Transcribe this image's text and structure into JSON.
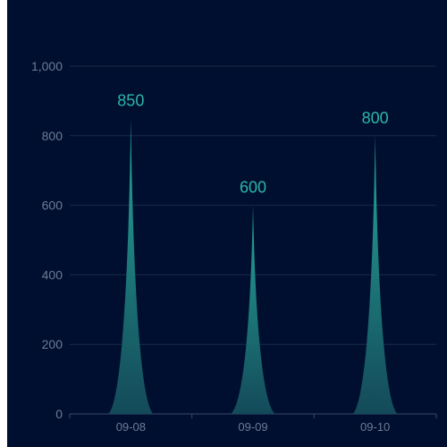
{
  "chart_data": {
    "type": "bar",
    "bar_shape": "spike",
    "categories": [
      "09-08",
      "09-09",
      "09-10"
    ],
    "values": [
      850,
      600,
      800
    ],
    "data_labels": [
      "850",
      "600",
      "800"
    ],
    "ylim": [
      0,
      1000
    ],
    "yticks": [
      0,
      200,
      400,
      600,
      800,
      1000
    ],
    "ytick_labels": [
      "0",
      "200",
      "400",
      "600",
      "800",
      "1,000"
    ],
    "grid": true,
    "legend": "none",
    "colors": {
      "background": "#000f2f",
      "bar_top": "#26a69a",
      "bar_bottom": "#134a59",
      "data_label": "#2bb5a8",
      "tick_text": "#6c7b95",
      "grid": "#1b2a4a",
      "axis": "#3a4868"
    }
  }
}
